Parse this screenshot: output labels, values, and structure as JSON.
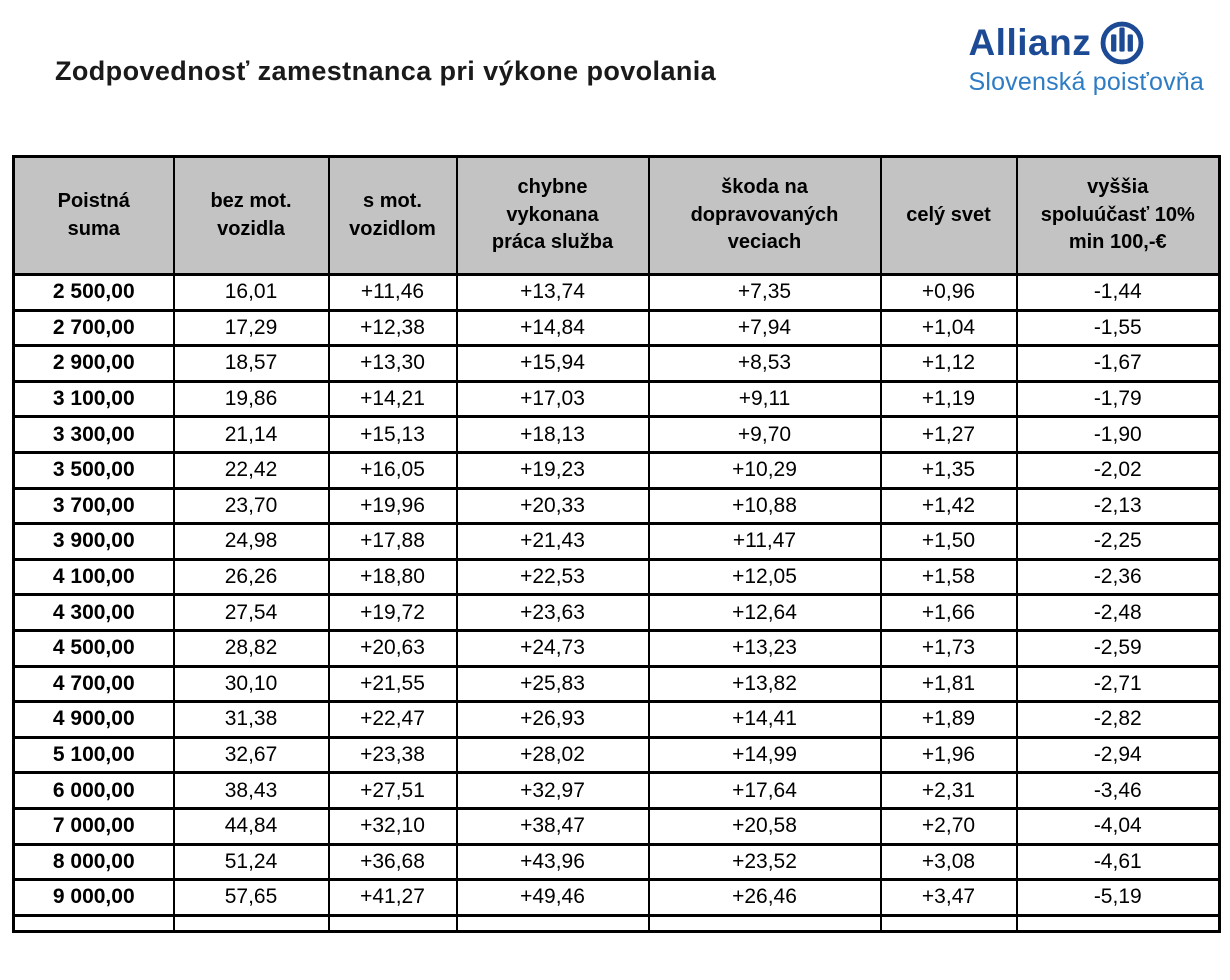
{
  "title": "Zodpovednosť zamestnanca pri výkone povolania",
  "logo": {
    "brand": "Allianz",
    "subtitle": "Slovenská poisťovňa",
    "brand_color": "#1d4a94",
    "subtitle_color": "#2e7cc3"
  },
  "table": {
    "header_bg": "#c3c3c3",
    "columns": [
      "Poistná\nsuma",
      "bez mot.\nvozidla",
      "s mot.\nvozidlom",
      "chybne\nvykonana\npráca služba",
      "škoda na\ndopravovaných\nveciach",
      "celý svet",
      "vyššia\nspoluúčasť 10%\nmin 100,-€"
    ],
    "rows": [
      [
        "2 500,00",
        "16,01",
        "+11,46",
        "+13,74",
        "+7,35",
        "+0,96",
        "-1,44"
      ],
      [
        "2 700,00",
        "17,29",
        "+12,38",
        "+14,84",
        "+7,94",
        "+1,04",
        "-1,55"
      ],
      [
        "2 900,00",
        "18,57",
        "+13,30",
        "+15,94",
        "+8,53",
        "+1,12",
        "-1,67"
      ],
      [
        "3 100,00",
        "19,86",
        "+14,21",
        "+17,03",
        "+9,11",
        "+1,19",
        "-1,79"
      ],
      [
        "3 300,00",
        "21,14",
        "+15,13",
        "+18,13",
        "+9,70",
        "+1,27",
        "-1,90"
      ],
      [
        "3 500,00",
        "22,42",
        "+16,05",
        "+19,23",
        "+10,29",
        "+1,35",
        "-2,02"
      ],
      [
        "3 700,00",
        "23,70",
        "+19,96",
        "+20,33",
        "+10,88",
        "+1,42",
        "-2,13"
      ],
      [
        "3 900,00",
        "24,98",
        "+17,88",
        "+21,43",
        "+11,47",
        "+1,50",
        "-2,25"
      ],
      [
        "4 100,00",
        "26,26",
        "+18,80",
        "+22,53",
        "+12,05",
        "+1,58",
        "-2,36"
      ],
      [
        "4 300,00",
        "27,54",
        "+19,72",
        "+23,63",
        "+12,64",
        "+1,66",
        "-2,48"
      ],
      [
        "4 500,00",
        "28,82",
        "+20,63",
        "+24,73",
        "+13,23",
        "+1,73",
        "-2,59"
      ],
      [
        "4 700,00",
        "30,10",
        "+21,55",
        "+25,83",
        "+13,82",
        "+1,81",
        "-2,71"
      ],
      [
        "4 900,00",
        "31,38",
        "+22,47",
        "+26,93",
        "+14,41",
        "+1,89",
        "-2,82"
      ],
      [
        "5 100,00",
        "32,67",
        "+23,38",
        "+28,02",
        "+14,99",
        "+1,96",
        "-2,94"
      ],
      [
        "6 000,00",
        "38,43",
        "+27,51",
        "+32,97",
        "+17,64",
        "+2,31",
        "-3,46"
      ],
      [
        "7 000,00",
        "44,84",
        "+32,10",
        "+38,47",
        "+20,58",
        "+2,70",
        "-4,04"
      ],
      [
        "8 000,00",
        "51,24",
        "+36,68",
        "+43,96",
        "+23,52",
        "+3,08",
        "-4,61"
      ],
      [
        "9 000,00",
        "57,65",
        "+41,27",
        "+49,46",
        "+26,46",
        "+3,47",
        "-5,19"
      ]
    ]
  }
}
